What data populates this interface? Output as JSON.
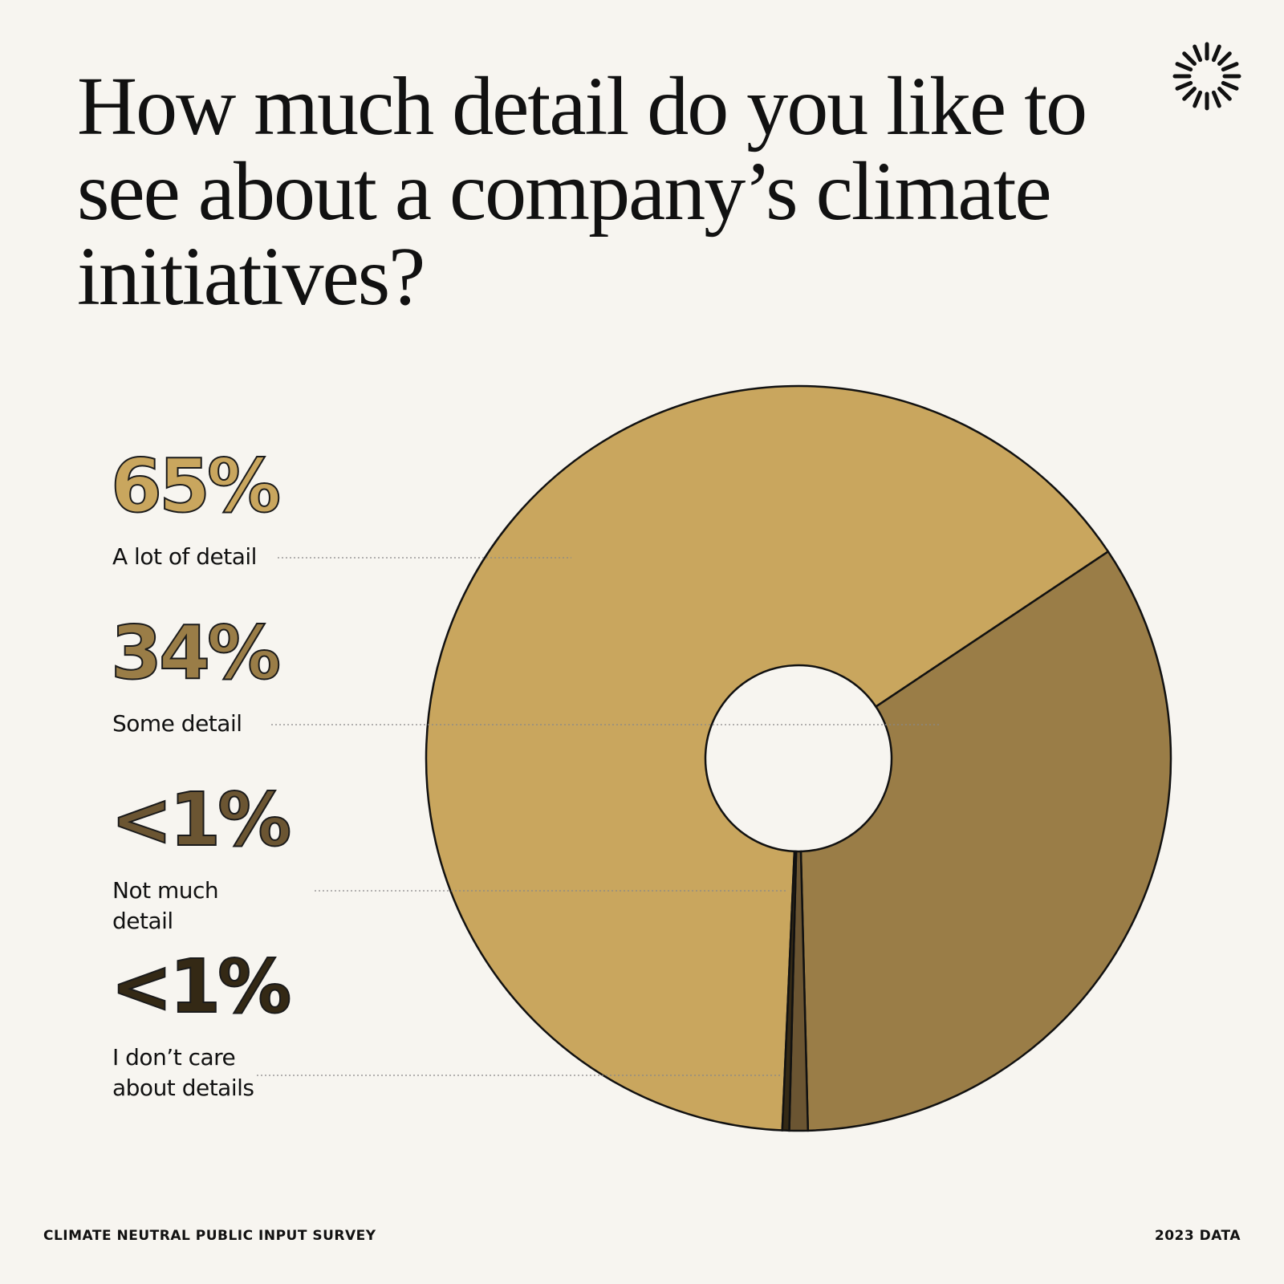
{
  "chart_data": {
    "type": "donut",
    "title": "How much detail do you like to see about a company’s climate initiatives?",
    "categories": [
      "A lot of detail",
      "Some detail",
      "Not much detail",
      "I don’t care about details"
    ],
    "values": [
      65,
      34,
      0.8,
      0.3
    ],
    "value_labels": [
      "65%",
      "34%",
      "<1%",
      "<1%"
    ],
    "colors": [
      "#c9a65e",
      "#9a7d47",
      "#6b5532",
      "#342915"
    ],
    "source": "CLIMATE NEUTRAL PUBLIC INPUT SURVEY",
    "note": "2023 DATA"
  }
}
